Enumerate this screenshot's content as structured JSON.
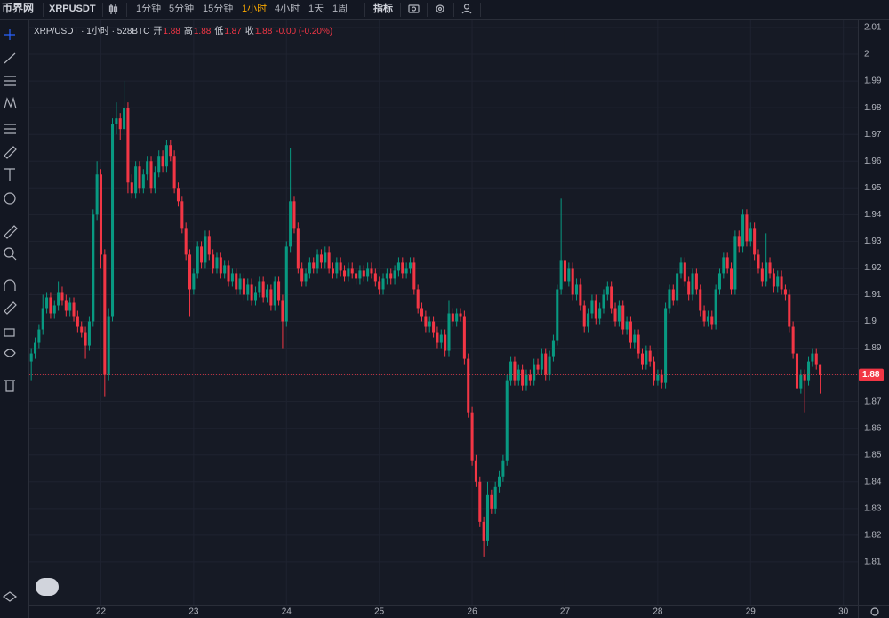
{
  "toolbar": {
    "logo": "币界网",
    "symbol": "XRPUSDT",
    "intervals": [
      "1分钟",
      "5分钟",
      "15分钟",
      "1小时",
      "4小时",
      "1天",
      "1周"
    ],
    "active_interval": "1小时",
    "indicators": "指标"
  },
  "chart_data": {
    "type": "candlestick",
    "title": "XRP/USDT · 1小时 · 528BTC",
    "ohlc_header": {
      "labels": [
        "开",
        "高",
        "低",
        "收"
      ],
      "values": [
        1.88,
        1.88,
        1.87,
        1.88
      ],
      "change": "-0.00 (-0.20%)"
    },
    "up_color": "#089981",
    "down_color": "#f23645",
    "grid": true,
    "price_line": 1.88,
    "ylim": [
      1.794,
      2.013
    ],
    "yticks": [
      1.81,
      1.82,
      1.83,
      1.84,
      1.85,
      1.86,
      1.87,
      1.88,
      1.89,
      1.9,
      1.91,
      1.92,
      1.93,
      1.94,
      1.95,
      1.96,
      1.97,
      1.98,
      1.99,
      2.0,
      2.01
    ],
    "xlim": [
      -0.5,
      213.75
    ],
    "xticks": [
      {
        "value": 18,
        "label": "22"
      },
      {
        "value": 42,
        "label": "23"
      },
      {
        "value": 66,
        "label": "24"
      },
      {
        "value": 90,
        "label": "25"
      },
      {
        "value": 114,
        "label": "26"
      },
      {
        "value": 138,
        "label": "27"
      },
      {
        "value": 162,
        "label": "28"
      },
      {
        "value": 186,
        "label": "29"
      },
      {
        "value": 210,
        "label": "30"
      }
    ],
    "candles": [
      [
        1.885,
        1.89,
        1.878,
        1.888
      ],
      [
        1.888,
        1.894,
        1.886,
        1.892
      ],
      [
        1.892,
        1.899,
        1.89,
        1.897
      ],
      [
        1.897,
        1.91,
        1.895,
        1.905
      ],
      [
        1.905,
        1.911,
        1.903,
        1.909
      ],
      [
        1.909,
        1.911,
        1.901,
        1.903
      ],
      [
        1.903,
        1.908,
        1.901,
        1.906
      ],
      [
        1.906,
        1.915,
        1.904,
        1.911
      ],
      [
        1.911,
        1.913,
        1.906,
        1.908
      ],
      [
        1.908,
        1.91,
        1.902,
        1.904
      ],
      [
        1.904,
        1.909,
        1.902,
        1.907
      ],
      [
        1.907,
        1.909,
        1.9,
        1.902
      ],
      [
        1.902,
        1.904,
        1.896,
        1.898
      ],
      [
        1.898,
        1.9,
        1.894,
        1.896
      ],
      [
        1.896,
        1.898,
        1.886,
        1.891
      ],
      [
        1.891,
        1.902,
        1.889,
        1.9
      ],
      [
        1.9,
        1.942,
        1.898,
        1.94
      ],
      [
        1.94,
        1.96,
        1.938,
        1.955
      ],
      [
        1.955,
        1.957,
        1.92,
        1.925
      ],
      [
        1.925,
        1.927,
        1.872,
        1.88
      ],
      [
        1.88,
        1.905,
        1.878,
        1.902
      ],
      [
        1.902,
        1.976,
        1.9,
        1.974
      ],
      [
        1.974,
        1.982,
        1.97,
        1.976
      ],
      [
        1.976,
        1.978,
        1.968,
        1.972
      ],
      [
        1.972,
        1.99,
        1.97,
        1.98
      ],
      [
        1.98,
        1.982,
        1.948,
        1.952
      ],
      [
        1.952,
        1.955,
        1.946,
        1.948
      ],
      [
        1.948,
        1.96,
        1.946,
        1.958
      ],
      [
        1.958,
        1.96,
        1.948,
        1.95
      ],
      [
        1.95,
        1.957,
        1.948,
        1.955
      ],
      [
        1.955,
        1.962,
        1.953,
        1.96
      ],
      [
        1.96,
        1.962,
        1.948,
        1.95
      ],
      [
        1.95,
        1.958,
        1.948,
        1.956
      ],
      [
        1.956,
        1.964,
        1.954,
        1.962
      ],
      [
        1.962,
        1.964,
        1.956,
        1.958
      ],
      [
        1.958,
        1.968,
        1.956,
        1.966
      ],
      [
        1.966,
        1.968,
        1.96,
        1.962
      ],
      [
        1.962,
        1.964,
        1.948,
        1.95
      ],
      [
        1.95,
        1.952,
        1.943,
        1.945
      ],
      [
        1.945,
        1.947,
        1.933,
        1.935
      ],
      [
        1.935,
        1.937,
        1.923,
        1.925
      ],
      [
        1.925,
        1.927,
        1.902,
        1.912
      ],
      [
        1.912,
        1.92,
        1.91,
        1.918
      ],
      [
        1.918,
        1.93,
        1.916,
        1.928
      ],
      [
        1.928,
        1.93,
        1.92,
        1.922
      ],
      [
        1.922,
        1.934,
        1.92,
        1.932
      ],
      [
        1.932,
        1.934,
        1.923,
        1.925
      ],
      [
        1.925,
        1.927,
        1.918,
        1.92
      ],
      [
        1.92,
        1.926,
        1.918,
        1.924
      ],
      [
        1.924,
        1.926,
        1.916,
        1.918
      ],
      [
        1.918,
        1.923,
        1.916,
        1.921
      ],
      [
        1.921,
        1.923,
        1.913,
        1.915
      ],
      [
        1.915,
        1.92,
        1.913,
        1.918
      ],
      [
        1.918,
        1.92,
        1.91,
        1.912
      ],
      [
        1.912,
        1.918,
        1.91,
        1.916
      ],
      [
        1.916,
        1.918,
        1.908,
        1.91
      ],
      [
        1.91,
        1.916,
        1.908,
        1.914
      ],
      [
        1.914,
        1.916,
        1.906,
        1.908
      ],
      [
        1.908,
        1.913,
        1.906,
        1.911
      ],
      [
        1.911,
        1.917,
        1.909,
        1.915
      ],
      [
        1.915,
        1.917,
        1.907,
        1.909
      ],
      [
        1.909,
        1.914,
        1.907,
        1.912
      ],
      [
        1.912,
        1.914,
        1.904,
        1.906
      ],
      [
        1.906,
        1.917,
        1.904,
        1.915
      ],
      [
        1.915,
        1.917,
        1.906,
        1.908
      ],
      [
        1.908,
        1.91,
        1.89,
        1.9
      ],
      [
        1.9,
        1.93,
        1.898,
        1.928
      ],
      [
        1.928,
        1.965,
        1.926,
        1.945
      ],
      [
        1.945,
        1.947,
        1.933,
        1.935
      ],
      [
        1.935,
        1.937,
        1.918,
        1.92
      ],
      [
        1.92,
        1.922,
        1.913,
        1.915
      ],
      [
        1.915,
        1.92,
        1.913,
        1.918
      ],
      [
        1.918,
        1.924,
        1.916,
        1.922
      ],
      [
        1.922,
        1.924,
        1.918,
        1.92
      ],
      [
        1.92,
        1.927,
        1.918,
        1.925
      ],
      [
        1.925,
        1.927,
        1.92,
        1.922
      ],
      [
        1.922,
        1.928,
        1.92,
        1.926
      ],
      [
        1.926,
        1.928,
        1.918,
        1.92
      ],
      [
        1.92,
        1.922,
        1.916,
        1.918
      ],
      [
        1.918,
        1.924,
        1.916,
        1.922
      ],
      [
        1.922,
        1.924,
        1.917,
        1.919
      ],
      [
        1.919,
        1.921,
        1.915,
        1.917
      ],
      [
        1.917,
        1.922,
        1.915,
        1.92
      ],
      [
        1.92,
        1.922,
        1.916,
        1.918
      ],
      [
        1.918,
        1.92,
        1.914,
        1.916
      ],
      [
        1.916,
        1.921,
        1.914,
        1.919
      ],
      [
        1.919,
        1.921,
        1.915,
        1.917
      ],
      [
        1.917,
        1.922,
        1.915,
        1.92
      ],
      [
        1.92,
        1.922,
        1.916,
        1.918
      ],
      [
        1.918,
        1.92,
        1.913,
        1.915
      ],
      [
        1.915,
        1.917,
        1.91,
        1.912
      ],
      [
        1.912,
        1.918,
        1.91,
        1.916
      ],
      [
        1.916,
        1.92,
        1.914,
        1.918
      ],
      [
        1.918,
        1.92,
        1.914,
        1.916
      ],
      [
        1.916,
        1.921,
        1.914,
        1.919
      ],
      [
        1.919,
        1.924,
        1.917,
        1.922
      ],
      [
        1.922,
        1.924,
        1.916,
        1.918
      ],
      [
        1.918,
        1.922,
        1.916,
        1.92
      ],
      [
        1.92,
        1.924,
        1.918,
        1.922
      ],
      [
        1.922,
        1.924,
        1.91,
        1.912
      ],
      [
        1.912,
        1.914,
        1.903,
        1.905
      ],
      [
        1.905,
        1.907,
        1.9,
        1.902
      ],
      [
        1.902,
        1.904,
        1.896,
        1.898
      ],
      [
        1.898,
        1.902,
        1.896,
        1.9
      ],
      [
        1.9,
        1.902,
        1.894,
        1.896
      ],
      [
        1.896,
        1.898,
        1.89,
        1.892
      ],
      [
        1.892,
        1.897,
        1.89,
        1.895
      ],
      [
        1.895,
        1.897,
        1.887,
        1.889
      ],
      [
        1.889,
        1.908,
        1.887,
        1.903
      ],
      [
        1.903,
        1.905,
        1.898,
        1.9
      ],
      [
        1.9,
        1.905,
        1.898,
        1.903
      ],
      [
        1.903,
        1.905,
        1.9,
        1.902
      ],
      [
        1.902,
        1.904,
        1.884,
        1.886
      ],
      [
        1.886,
        1.888,
        1.864,
        1.866
      ],
      [
        1.866,
        1.868,
        1.846,
        1.848
      ],
      [
        1.848,
        1.85,
        1.838,
        1.84
      ],
      [
        1.84,
        1.842,
        1.823,
        1.825
      ],
      [
        1.825,
        1.827,
        1.812,
        1.818
      ],
      [
        1.818,
        1.84,
        1.816,
        1.835
      ],
      [
        1.835,
        1.837,
        1.828,
        1.83
      ],
      [
        1.83,
        1.84,
        1.828,
        1.838
      ],
      [
        1.838,
        1.844,
        1.836,
        1.842
      ],
      [
        1.842,
        1.85,
        1.84,
        1.848
      ],
      [
        1.848,
        1.88,
        1.846,
        1.878
      ],
      [
        1.878,
        1.887,
        1.876,
        1.885
      ],
      [
        1.885,
        1.887,
        1.876,
        1.878
      ],
      [
        1.878,
        1.884,
        1.876,
        1.882
      ],
      [
        1.882,
        1.884,
        1.874,
        1.876
      ],
      [
        1.876,
        1.882,
        1.874,
        1.88
      ],
      [
        1.88,
        1.882,
        1.876,
        1.878
      ],
      [
        1.878,
        1.886,
        1.876,
        1.884
      ],
      [
        1.884,
        1.886,
        1.88,
        1.882
      ],
      [
        1.882,
        1.89,
        1.88,
        1.888
      ],
      [
        1.888,
        1.89,
        1.878,
        1.88
      ],
      [
        1.88,
        1.889,
        1.878,
        1.887
      ],
      [
        1.887,
        1.895,
        1.885,
        1.893
      ],
      [
        1.893,
        1.914,
        1.891,
        1.912
      ],
      [
        1.912,
        1.946,
        1.91,
        1.923
      ],
      [
        1.923,
        1.925,
        1.913,
        1.915
      ],
      [
        1.915,
        1.922,
        1.913,
        1.92
      ],
      [
        1.92,
        1.922,
        1.908,
        1.91
      ],
      [
        1.91,
        1.916,
        1.908,
        1.914
      ],
      [
        1.914,
        1.916,
        1.904,
        1.906
      ],
      [
        1.906,
        1.908,
        1.896,
        1.898
      ],
      [
        1.898,
        1.905,
        1.896,
        1.903
      ],
      [
        1.903,
        1.91,
        1.901,
        1.908
      ],
      [
        1.908,
        1.91,
        1.899,
        1.901
      ],
      [
        1.901,
        1.907,
        1.899,
        1.905
      ],
      [
        1.905,
        1.912,
        1.903,
        1.91
      ],
      [
        1.91,
        1.915,
        1.908,
        1.913
      ],
      [
        1.913,
        1.915,
        1.903,
        1.905
      ],
      [
        1.905,
        1.907,
        1.898,
        1.9
      ],
      [
        1.9,
        1.908,
        1.898,
        1.906
      ],
      [
        1.906,
        1.908,
        1.895,
        1.897
      ],
      [
        1.897,
        1.902,
        1.895,
        1.9
      ],
      [
        1.9,
        1.902,
        1.89,
        1.892
      ],
      [
        1.892,
        1.897,
        1.89,
        1.895
      ],
      [
        1.895,
        1.897,
        1.886,
        1.888
      ],
      [
        1.888,
        1.89,
        1.882,
        1.884
      ],
      [
        1.884,
        1.891,
        1.882,
        1.889
      ],
      [
        1.889,
        1.891,
        1.883,
        1.885
      ],
      [
        1.885,
        1.887,
        1.876,
        1.878
      ],
      [
        1.878,
        1.882,
        1.876,
        1.88
      ],
      [
        1.88,
        1.882,
        1.875,
        1.877
      ],
      [
        1.877,
        1.907,
        1.875,
        1.905
      ],
      [
        1.905,
        1.914,
        1.903,
        1.912
      ],
      [
        1.912,
        1.914,
        1.906,
        1.908
      ],
      [
        1.908,
        1.92,
        1.906,
        1.918
      ],
      [
        1.918,
        1.924,
        1.916,
        1.922
      ],
      [
        1.922,
        1.924,
        1.913,
        1.915
      ],
      [
        1.915,
        1.917,
        1.908,
        1.91
      ],
      [
        1.91,
        1.92,
        1.908,
        1.918
      ],
      [
        1.918,
        1.92,
        1.91,
        1.912
      ],
      [
        1.912,
        1.914,
        1.902,
        1.904
      ],
      [
        1.904,
        1.906,
        1.898,
        1.9
      ],
      [
        1.9,
        1.904,
        1.898,
        1.902
      ],
      [
        1.902,
        1.904,
        1.897,
        1.899
      ],
      [
        1.899,
        1.914,
        1.897,
        1.912
      ],
      [
        1.912,
        1.92,
        1.91,
        1.918
      ],
      [
        1.918,
        1.926,
        1.916,
        1.924
      ],
      [
        1.924,
        1.926,
        1.918,
        1.92
      ],
      [
        1.92,
        1.922,
        1.91,
        1.912
      ],
      [
        1.912,
        1.934,
        1.91,
        1.932
      ],
      [
        1.932,
        1.934,
        1.926,
        1.928
      ],
      [
        1.928,
        1.942,
        1.926,
        1.94
      ],
      [
        1.94,
        1.942,
        1.928,
        1.93
      ],
      [
        1.93,
        1.937,
        1.928,
        1.935
      ],
      [
        1.935,
        1.937,
        1.923,
        1.925
      ],
      [
        1.925,
        1.927,
        1.918,
        1.92
      ],
      [
        1.92,
        1.922,
        1.913,
        1.915
      ],
      [
        1.915,
        1.933,
        1.913,
        1.922
      ],
      [
        1.922,
        1.924,
        1.916,
        1.918
      ],
      [
        1.918,
        1.92,
        1.911,
        1.913
      ],
      [
        1.913,
        1.919,
        1.911,
        1.917
      ],
      [
        1.917,
        1.919,
        1.91,
        1.912
      ],
      [
        1.912,
        1.914,
        1.908,
        1.91
      ],
      [
        1.91,
        1.912,
        1.896,
        1.898
      ],
      [
        1.898,
        1.9,
        1.886,
        1.888
      ],
      [
        1.888,
        1.89,
        1.873,
        1.875
      ],
      [
        1.875,
        1.882,
        1.873,
        1.88
      ],
      [
        1.88,
        1.882,
        1.866,
        1.878
      ],
      [
        1.878,
        1.887,
        1.876,
        1.885
      ],
      [
        1.885,
        1.89,
        1.883,
        1.888
      ],
      [
        1.888,
        1.89,
        1.882,
        1.884
      ],
      [
        1.884,
        1.884,
        1.873,
        1.88
      ]
    ]
  }
}
